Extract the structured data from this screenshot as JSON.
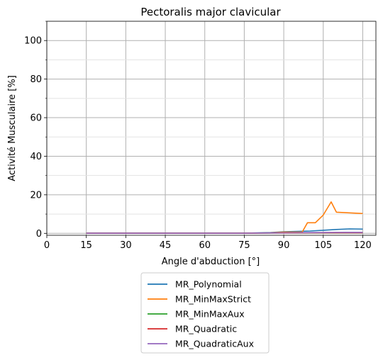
{
  "chart_data": {
    "type": "line",
    "title": "Pectoralis major clavicular",
    "xlabel": "Angle d'abduction [°]",
    "ylabel": "Activité Musculaire [%]",
    "xlim": [
      0,
      125
    ],
    "ylim": [
      -1,
      110
    ],
    "xticks": [
      0,
      15,
      30,
      45,
      60,
      75,
      90,
      105,
      120
    ],
    "yticks": [
      0,
      20,
      40,
      60,
      80,
      100
    ],
    "y_minor_ticks": [
      10,
      30,
      50,
      70,
      90,
      110
    ],
    "grid": true,
    "legend_position": "below",
    "series": [
      {
        "name": "MR_Polynomial",
        "color": "#1f77b4",
        "points": [
          [
            15,
            0.1
          ],
          [
            30,
            0.1
          ],
          [
            45,
            0.1
          ],
          [
            60,
            0.1
          ],
          [
            75,
            0.1
          ],
          [
            85,
            0.4
          ],
          [
            90,
            0.8
          ],
          [
            95,
            1.0
          ],
          [
            100,
            1.2
          ],
          [
            105,
            1.6
          ],
          [
            110,
            2.0
          ],
          [
            115,
            2.3
          ],
          [
            120,
            2.2
          ]
        ]
      },
      {
        "name": "MR_MinMaxStrict",
        "color": "#ff7f0e",
        "points": [
          [
            15,
            0.1
          ],
          [
            30,
            0.1
          ],
          [
            45,
            0.1
          ],
          [
            60,
            0.1
          ],
          [
            75,
            0.1
          ],
          [
            85,
            0.3
          ],
          [
            90,
            0.6
          ],
          [
            97,
            0.7
          ],
          [
            99,
            5.5
          ],
          [
            102,
            5.5
          ],
          [
            105,
            9.5
          ],
          [
            108,
            16.3
          ],
          [
            110,
            11.0
          ],
          [
            120,
            10.3
          ]
        ]
      },
      {
        "name": "MR_MinMaxAux",
        "color": "#2ca02c",
        "points": [
          [
            15,
            0.05
          ],
          [
            30,
            0.05
          ],
          [
            45,
            0.05
          ],
          [
            60,
            0.05
          ],
          [
            75,
            0.05
          ],
          [
            90,
            0.2
          ],
          [
            100,
            0.3
          ],
          [
            110,
            0.3
          ],
          [
            120,
            0.3
          ]
        ]
      },
      {
        "name": "MR_Quadratic",
        "color": "#d62728",
        "points": [
          [
            15,
            0.05
          ],
          [
            30,
            0.05
          ],
          [
            45,
            0.05
          ],
          [
            60,
            0.05
          ],
          [
            75,
            0.05
          ],
          [
            90,
            0.2
          ],
          [
            100,
            0.3
          ],
          [
            110,
            0.3
          ],
          [
            120,
            0.3
          ]
        ]
      },
      {
        "name": "MR_QuadraticAux",
        "color": "#9467bd",
        "points": [
          [
            15,
            0.05
          ],
          [
            30,
            0.05
          ],
          [
            45,
            0.05
          ],
          [
            60,
            0.05
          ],
          [
            75,
            0.05
          ],
          [
            90,
            0.3
          ],
          [
            100,
            0.4
          ],
          [
            110,
            0.5
          ],
          [
            120,
            0.5
          ]
        ]
      }
    ]
  }
}
